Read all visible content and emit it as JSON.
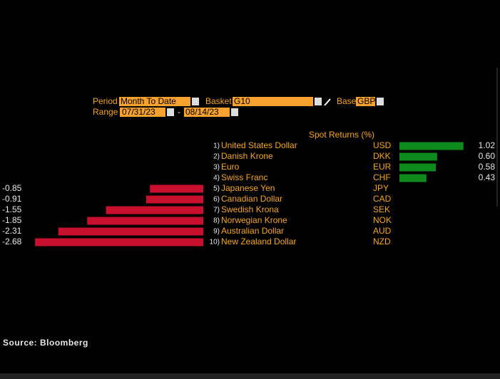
{
  "controls": {
    "period_label": "Period",
    "period": "Month To Date",
    "basket_label": "Basket",
    "basket": "G10",
    "base_label": "Base",
    "base": "GBP",
    "range_label": "Range",
    "range_start": "07/31/23",
    "range_sep": "-",
    "range_end": "08/14/23"
  },
  "chart_data": {
    "type": "bar",
    "orientation": "horizontal",
    "title": "Spot Returns (%)",
    "ranks": [
      "1)",
      "2)",
      "3)",
      "4)",
      "5)",
      "6)",
      "7)",
      "8)",
      "9)",
      "10)"
    ],
    "categories": [
      "United States Dollar",
      "Danish Krone",
      "Euro",
      "Swiss Franc",
      "Japanese Yen",
      "Canadian Dollar",
      "Swedish Krona",
      "Norwegian Krone",
      "Australian Dollar",
      "New Zealand Dollar"
    ],
    "codes": [
      "USD",
      "DKK",
      "EUR",
      "CHF",
      "JPY",
      "CAD",
      "SEK",
      "NOK",
      "AUD",
      "NZD"
    ],
    "values": [
      1.02,
      0.6,
      0.58,
      0.43,
      -0.85,
      -0.91,
      -1.55,
      -1.85,
      -2.31,
      -2.68
    ],
    "value_labels": [
      "1.02",
      "0.60",
      "0.58",
      "0.43",
      "-0.85",
      "-0.91",
      "-1.55",
      "-1.85",
      "-2.31",
      "-2.68"
    ],
    "positive_color": "#0f8a1c",
    "negative_color": "#c8102e"
  },
  "footer": {
    "source": "Source: Bloomberg"
  }
}
